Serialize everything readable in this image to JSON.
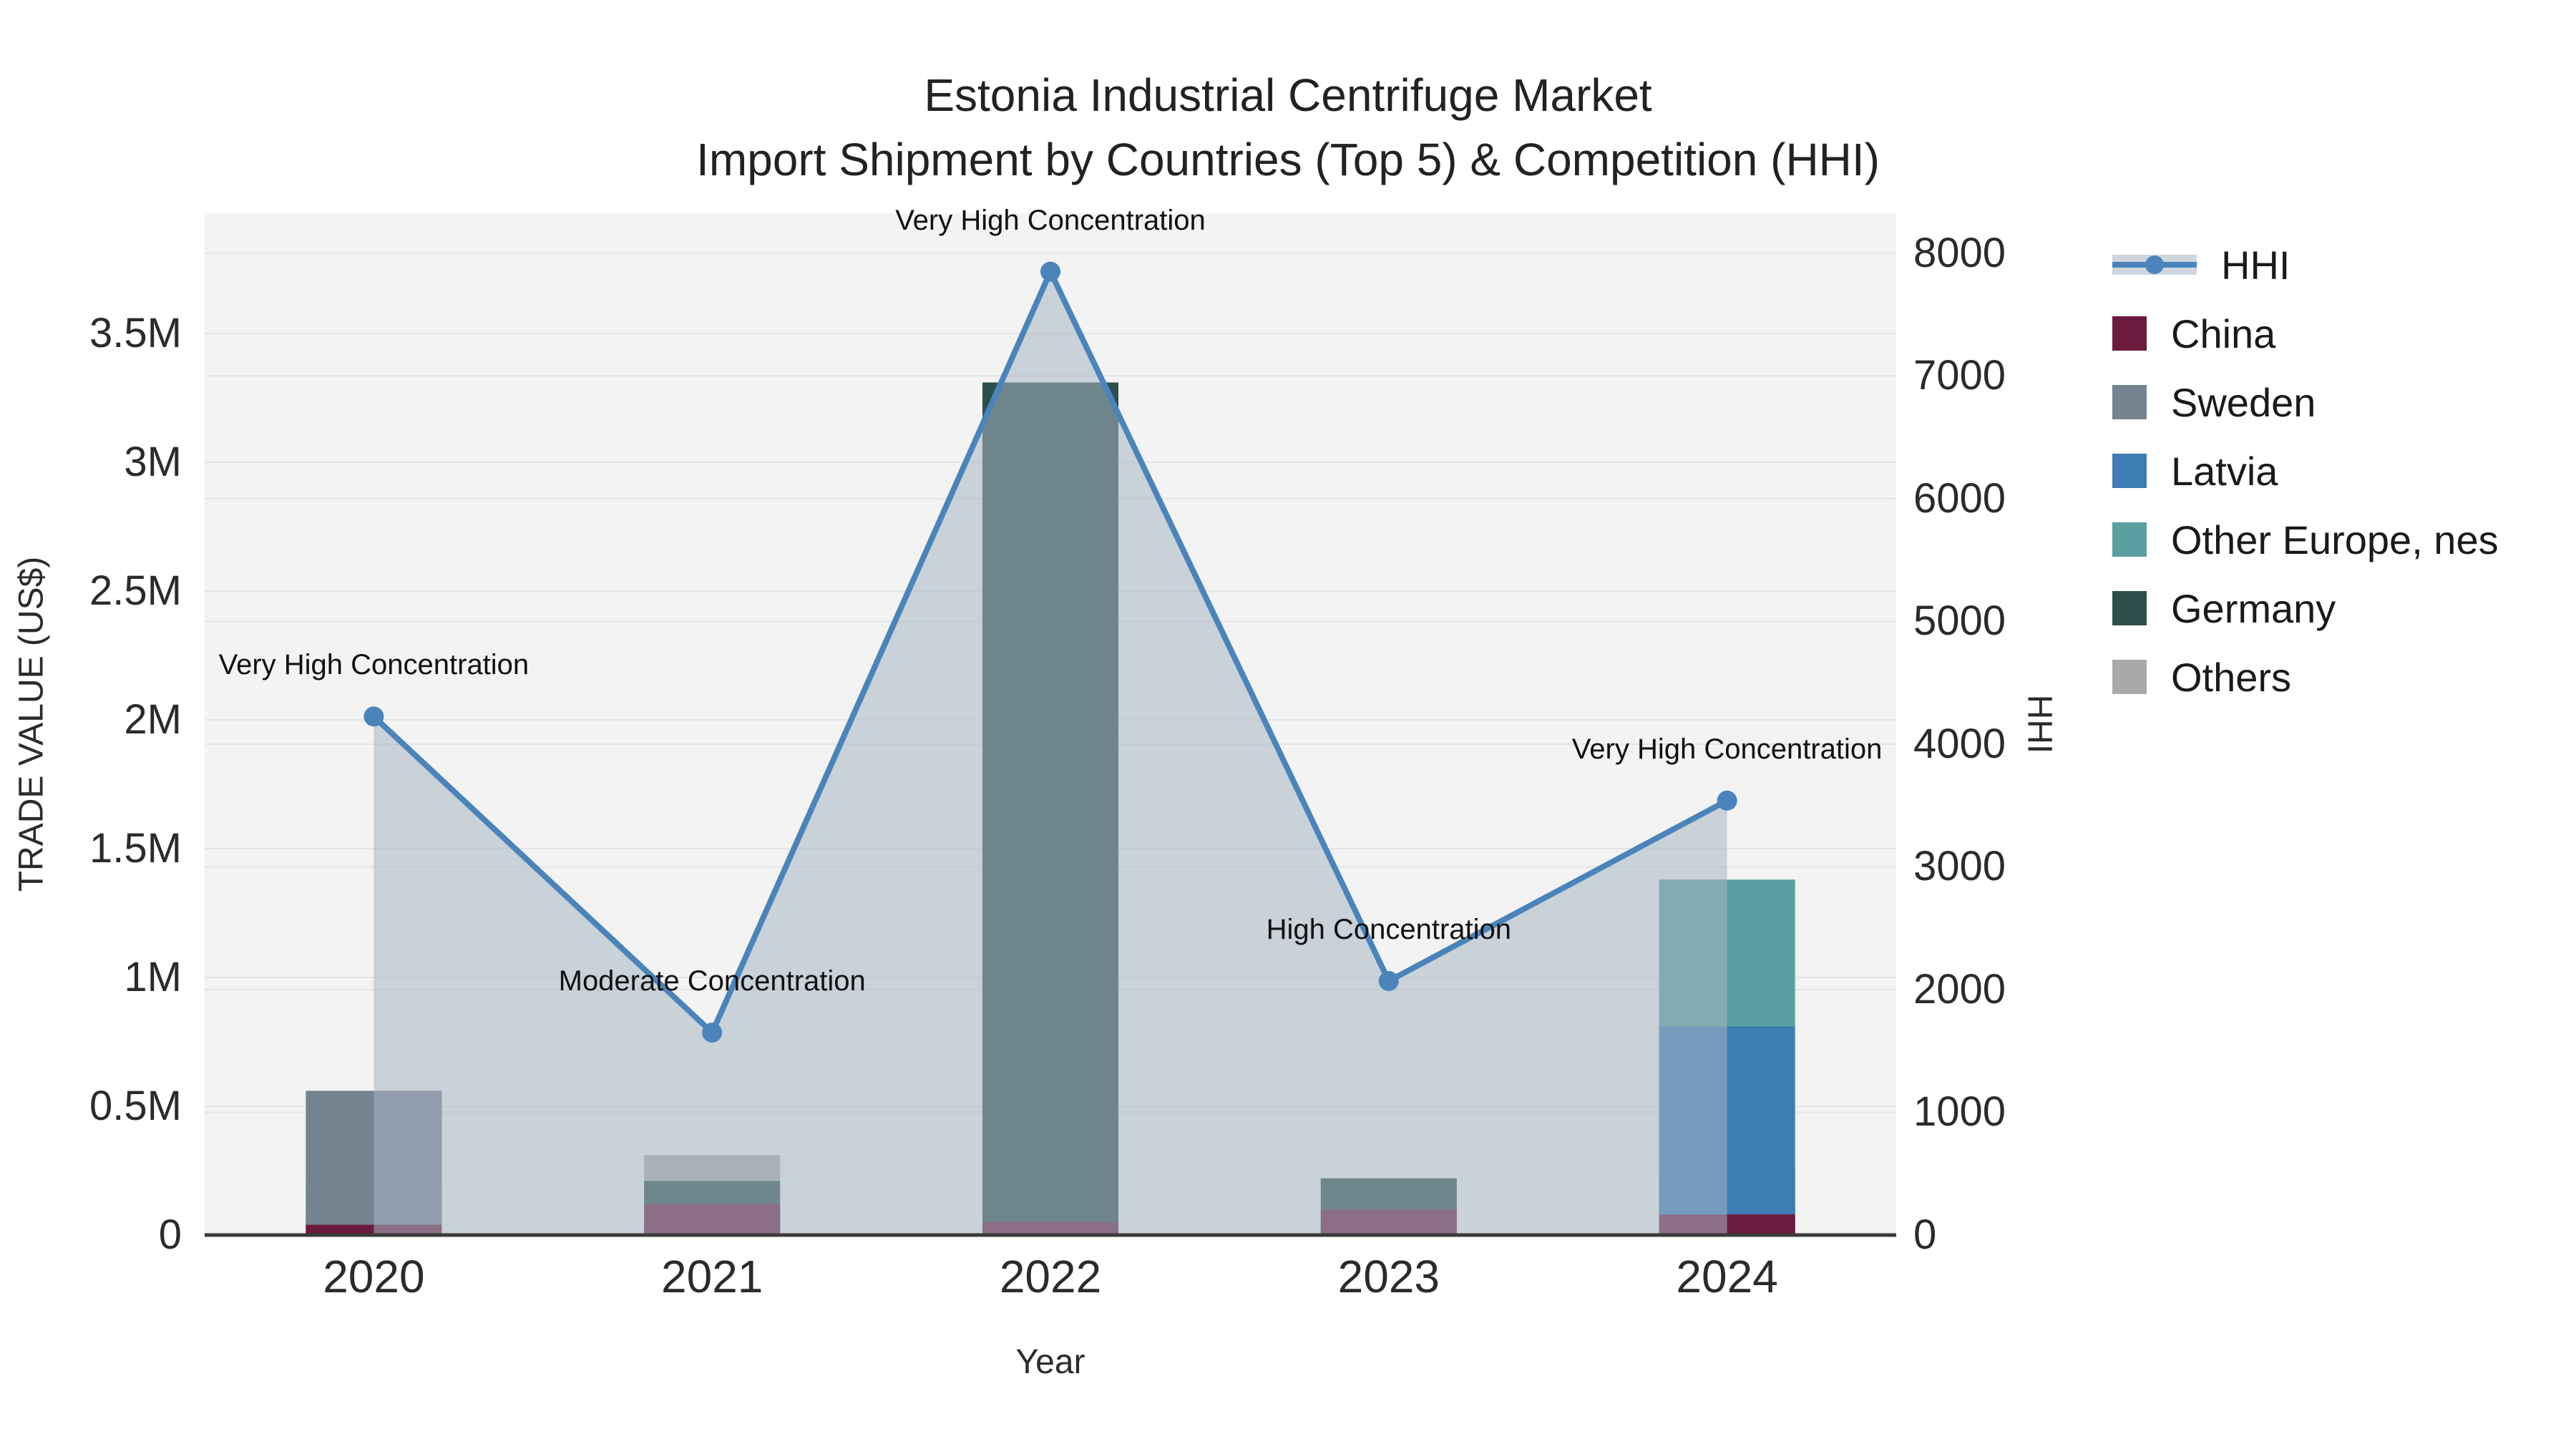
{
  "title": {
    "line1": "Estonia Industrial Centrifuge Market",
    "line2": "Import Shipment by Countries (Top 5) & Competition (HHI)"
  },
  "colors": {
    "plot_bg": "#f2f3f2",
    "grid": "#e3e4e5",
    "axis_line": "#3a3a3a",
    "hhi_line": "#4a84ba",
    "hhi_area": "rgba(168,180,196,0.55)",
    "annotation_text": "#111111"
  },
  "chart_data": {
    "type": "bar",
    "subtype": "stacked-bars-with-line",
    "categories": [
      "2020",
      "2021",
      "2022",
      "2023",
      "2024"
    ],
    "bar_value_unit": "million US$",
    "series": [
      {
        "name": "Others",
        "color": "#a8aaa8",
        "values": [
          0.09,
          0.31,
          0.38,
          0.22,
          0.21
        ]
      },
      {
        "name": "Germany",
        "color": "#2d4f4b",
        "values": [
          0.2,
          0.21,
          3.31,
          0.22,
          0.26
        ]
      },
      {
        "name": "Other Europe, nes",
        "color": "#5aa0a0",
        "values": [
          0.02,
          0.03,
          0.01,
          0.02,
          1.38
        ]
      },
      {
        "name": "Latvia",
        "color": "#3d7db3",
        "values": [
          0.02,
          0.02,
          0.01,
          0.02,
          0.81
        ]
      },
      {
        "name": "Sweden",
        "color": "#75828f",
        "values": [
          0.56,
          0.0,
          0.0,
          0.0,
          0.0
        ]
      },
      {
        "name": "China",
        "color": "#6b1b3d",
        "values": [
          0.04,
          0.12,
          0.05,
          0.1,
          0.08
        ]
      }
    ],
    "line_series": {
      "name": "HHI",
      "values": [
        4225,
        1650,
        7850,
        2070,
        3540
      ]
    },
    "annotations": [
      {
        "category": "2020",
        "text": "Very High Concentration"
      },
      {
        "category": "2021",
        "text": "Moderate Concentration"
      },
      {
        "category": "2022",
        "text": "Very High Concentration"
      },
      {
        "category": "2023",
        "text": "High Concentration"
      },
      {
        "category": "2024",
        "text": "Very High Concentration"
      }
    ],
    "title": "Estonia Industrial Centrifuge Market Import Shipment by Countries (Top 5) & Competition (HHI)",
    "xlabel": "Year",
    "ylabel_left": "TRADE VALUE (US$)",
    "ylabel_right": "HHI",
    "y_left": {
      "tick_labels": [
        "0",
        "0.5M",
        "1M",
        "1.5M",
        "2M",
        "2.5M",
        "3M",
        "3.5M"
      ],
      "tick_values_m": [
        0,
        0.5,
        1,
        1.5,
        2,
        2.5,
        3,
        3.5
      ],
      "range_m": [
        0,
        3.967
      ]
    },
    "y_right": {
      "tick_labels": [
        "0",
        "1000",
        "2000",
        "3000",
        "4000",
        "5000",
        "6000",
        "7000",
        "8000"
      ],
      "tick_values": [
        0,
        1000,
        2000,
        3000,
        4000,
        5000,
        6000,
        7000,
        8000
      ],
      "range": [
        0,
        8326
      ]
    },
    "grid": true,
    "legend_position": "right"
  },
  "legend": {
    "items": [
      {
        "name": "HHI",
        "kind": "line"
      },
      {
        "name": "China",
        "kind": "square",
        "color": "#6b1b3d"
      },
      {
        "name": "Sweden",
        "kind": "square",
        "color": "#75828f"
      },
      {
        "name": "Latvia",
        "kind": "square",
        "color": "#3d7db3"
      },
      {
        "name": "Other Europe, nes",
        "kind": "square",
        "color": "#5aa0a0"
      },
      {
        "name": "Germany",
        "kind": "square",
        "color": "#2d4f4b"
      },
      {
        "name": "Others",
        "kind": "square",
        "color": "#a8aaa8"
      }
    ]
  }
}
